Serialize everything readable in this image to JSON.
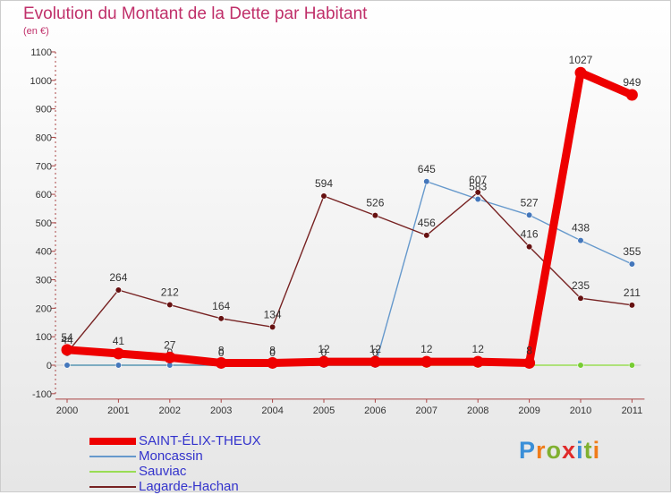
{
  "title": "Evolution du Montant de la Dette par Habitant",
  "subtitle": "(en €)",
  "logo": {
    "text": "Proxiti",
    "letters": [
      {
        "ch": "P",
        "color": "#3a8fd8"
      },
      {
        "ch": "r",
        "color": "#f07c1a"
      },
      {
        "ch": "o",
        "color": "#80b030"
      },
      {
        "ch": "x",
        "color": "#e02a2a"
      },
      {
        "ch": "i",
        "color": "#3a8fd8"
      },
      {
        "ch": "t",
        "color": "#80b030"
      },
      {
        "ch": "i",
        "color": "#f07c1a"
      }
    ]
  },
  "chart_data": {
    "type": "line",
    "title": "Evolution du Montant de la Dette par Habitant",
    "ylabel": "(en €)",
    "xlabel": "",
    "ylim": [
      -100,
      1100
    ],
    "yticks": [
      -100,
      0,
      100,
      200,
      300,
      400,
      500,
      600,
      700,
      800,
      900,
      1000,
      1100
    ],
    "grid": false,
    "categories": [
      "2000",
      "2001",
      "2002",
      "2003",
      "2004",
      "2005",
      "2006",
      "2007",
      "2008",
      "2009",
      "2010",
      "2011"
    ],
    "legend_position": "bottom-left",
    "series": [
      {
        "name": "Sauviac",
        "color": "#99dd55",
        "marker_color": "#77cc33",
        "values": [
          0,
          0,
          0,
          0,
          0,
          0,
          0,
          0,
          0,
          0,
          0,
          0
        ],
        "labels": [
          null,
          null,
          null,
          null,
          null,
          null,
          null,
          null,
          null,
          null,
          null,
          null
        ],
        "legend_order": 2,
        "legend_thickness": 2
      },
      {
        "name": "Moncassin",
        "color": "#6699cc",
        "marker_color": "#4477bb",
        "values": [
          0,
          0,
          0,
          0,
          0,
          0,
          0,
          645,
          583,
          527,
          438,
          355
        ],
        "labels": [
          0,
          0,
          0,
          0,
          0,
          0,
          0,
          645,
          583,
          527,
          438,
          355
        ],
        "legend_order": 1,
        "legend_thickness": 2
      },
      {
        "name": "Lagarde-Hachan",
        "color": "#772222",
        "marker_color": "#661111",
        "values": [
          44,
          264,
          212,
          164,
          134,
          594,
          526,
          456,
          607,
          416,
          235,
          211
        ],
        "labels": [
          44,
          264,
          212,
          164,
          134,
          594,
          526,
          456,
          607,
          416,
          235,
          211
        ],
        "legend_order": 3,
        "legend_thickness": 2
      },
      {
        "name": "SAINT-ÉLIX-THEUX",
        "color": "#ee0000",
        "marker_color": "#ee0000",
        "values": [
          54,
          41,
          27,
          8,
          8,
          12,
          12,
          12,
          12,
          8,
          1027,
          949
        ],
        "labels": [
          54,
          41,
          27,
          8,
          8,
          12,
          12,
          12,
          12,
          8,
          1027,
          949
        ],
        "legend_order": 0,
        "legend_thickness": 8,
        "thick": true
      }
    ]
  }
}
